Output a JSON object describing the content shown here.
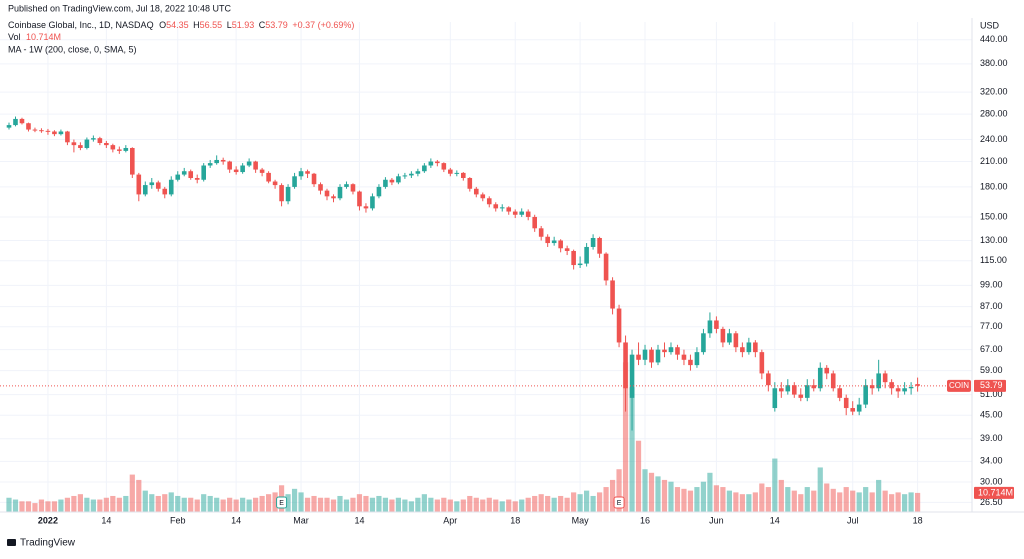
{
  "chart_data": {
    "type": "candlestick",
    "published": "Published on TradingView.com, Jul 18, 2022 10:48 UTC",
    "title": "Coinbase Global, Inc., 1D, NASDAQ",
    "ohlc_labels": [
      "O",
      "H",
      "L",
      "C"
    ],
    "change": "+0.37 (+0.69%)",
    "volume_name": "Vol",
    "volume_label": "10.714M",
    "indicator": "MA - 1W (200, close, 0, SMA, 5)",
    "currency": "USD",
    "symbol": "COIN",
    "brand": "TradingView",
    "up_color": "#26a69a",
    "down_color": "#ef5350",
    "log_scale": true,
    "grid": true,
    "ylim": [
      25,
      490
    ],
    "volume_lim": [
      0,
      275
    ],
    "yticks": [
      {
        "value": 26.5,
        "label": "26.50"
      },
      {
        "value": 30,
        "label": "30.00"
      },
      {
        "value": 34,
        "label": "34.00"
      },
      {
        "value": 39,
        "label": "39.00"
      },
      {
        "value": 45,
        "label": "45.00"
      },
      {
        "value": 51,
        "label": "51.00"
      },
      {
        "value": 59,
        "label": "59.00"
      },
      {
        "value": 67,
        "label": "67.00"
      },
      {
        "value": 77,
        "label": "77.00"
      },
      {
        "value": 87,
        "label": "87.00"
      },
      {
        "value": 99,
        "label": "99.00"
      },
      {
        "value": 115,
        "label": "115.00"
      },
      {
        "value": 130,
        "label": "130.00"
      },
      {
        "value": 150,
        "label": "150.00"
      },
      {
        "value": 180,
        "label": "180.00"
      },
      {
        "value": 210,
        "label": "210.00"
      },
      {
        "value": 240,
        "label": "240.00"
      },
      {
        "value": 280,
        "label": "280.00"
      },
      {
        "value": 320,
        "label": "320.00"
      },
      {
        "value": 380,
        "label": "380.00"
      },
      {
        "value": 440,
        "label": "440.00"
      }
    ],
    "xticks": [
      {
        "value": 6,
        "label": "2022"
      },
      {
        "value": 15,
        "label": "14"
      },
      {
        "value": 26,
        "label": "Feb"
      },
      {
        "value": 35,
        "label": "14"
      },
      {
        "value": 45,
        "label": "Mar"
      },
      {
        "value": 54,
        "label": "14"
      },
      {
        "value": 68,
        "label": "Apr"
      },
      {
        "value": 78,
        "label": "18"
      },
      {
        "value": 88,
        "label": "May"
      },
      {
        "value": 98,
        "label": "16"
      },
      {
        "value": 109,
        "label": "Jun"
      },
      {
        "value": 118,
        "label": "14"
      },
      {
        "value": 130,
        "label": "Jul"
      },
      {
        "value": 140,
        "label": "18"
      }
    ],
    "events": [
      {
        "index": 42,
        "label": "E"
      },
      {
        "index": 94,
        "label": "E"
      }
    ],
    "open": [
      258,
      262,
      272,
      265,
      255,
      254,
      253,
      252,
      248,
      252,
      236,
      232,
      228,
      240,
      242,
      235,
      232,
      226,
      224,
      228,
      194,
      172,
      182,
      185,
      178,
      172,
      188,
      194,
      198,
      190,
      188,
      205,
      208,
      212,
      210,
      200,
      197,
      205,
      210,
      200,
      196,
      186,
      182,
      165,
      180,
      192,
      198,
      195,
      183,
      176,
      170,
      168,
      180,
      183,
      175,
      160,
      158,
      170,
      180,
      188,
      185,
      192,
      193,
      195,
      198,
      205,
      210,
      208,
      200,
      195,
      196,
      190,
      178,
      172,
      168,
      162,
      158,
      159,
      155,
      152,
      155,
      150,
      140,
      133,
      128,
      130,
      124,
      122,
      112,
      113,
      125,
      132,
      120,
      102,
      86,
      70,
      50,
      65,
      63,
      67,
      62,
      67,
      66,
      68,
      65,
      63,
      61,
      66,
      74,
      80,
      76,
      70,
      74,
      68,
      66,
      70,
      66,
      58,
      47,
      53,
      52,
      54,
      51,
      50,
      54,
      53,
      60,
      58,
      53,
      50,
      47,
      46,
      48,
      54,
      53,
      58,
      55,
      53,
      52,
      53,
      54.35
    ],
    "high": [
      266,
      276,
      274,
      266,
      258,
      257,
      256,
      254,
      255,
      253,
      240,
      236,
      243,
      246,
      244,
      238,
      234,
      230,
      232,
      229,
      196,
      186,
      190,
      187,
      180,
      192,
      198,
      202,
      200,
      194,
      208,
      212,
      218,
      215,
      211,
      204,
      208,
      214,
      211,
      202,
      198,
      188,
      184,
      183,
      196,
      202,
      200,
      196,
      185,
      178,
      172,
      183,
      186,
      184,
      176,
      163,
      173,
      183,
      191,
      190,
      195,
      196,
      198,
      201,
      208,
      214,
      212,
      209,
      202,
      199,
      197,
      191,
      180,
      174,
      170,
      164,
      162,
      160,
      157,
      158,
      157,
      152,
      142,
      135,
      133,
      131,
      126,
      123,
      118,
      128,
      135,
      133,
      121,
      104,
      88,
      73,
      67,
      70,
      69,
      68,
      69,
      70,
      70,
      69,
      67,
      65,
      68,
      76,
      84,
      82,
      77,
      76,
      75,
      70,
      72,
      71,
      67,
      59,
      55,
      55,
      56,
      55,
      53,
      56,
      56,
      62,
      61,
      59,
      54,
      51,
      49,
      50,
      56,
      56,
      63,
      59,
      56,
      54,
      55,
      55,
      56.55
    ],
    "low": [
      255,
      260,
      263,
      252,
      251,
      250,
      247,
      245,
      246,
      232,
      222,
      225,
      226,
      237,
      232,
      228,
      222,
      220,
      222,
      190,
      165,
      170,
      178,
      175,
      168,
      170,
      186,
      192,
      188,
      184,
      186,
      202,
      206,
      206,
      196,
      194,
      195,
      203,
      196,
      192,
      184,
      178,
      160,
      162,
      178,
      188,
      190,
      180,
      172,
      166,
      164,
      166,
      178,
      172,
      156,
      154,
      156,
      168,
      178,
      182,
      183,
      189,
      190,
      192,
      196,
      202,
      204,
      197,
      192,
      192,
      187,
      175,
      169,
      165,
      159,
      155,
      155,
      152,
      149,
      150,
      147,
      137,
      130,
      125,
      126,
      121,
      119,
      109,
      110,
      111,
      123,
      117,
      99,
      83,
      68,
      46,
      41,
      61,
      61,
      60,
      61,
      64,
      65,
      63,
      61,
      59,
      60,
      65,
      72,
      74,
      68,
      69,
      66,
      64,
      65,
      64,
      56,
      52,
      46,
      50,
      51,
      50,
      49,
      49,
      52,
      52,
      56,
      52,
      49,
      45,
      45,
      45,
      47,
      51,
      52,
      53,
      51,
      50,
      51,
      51,
      51.93
    ],
    "close": [
      262,
      272,
      265,
      255,
      254,
      253,
      252,
      248,
      252,
      236,
      232,
      228,
      240,
      242,
      235,
      232,
      226,
      224,
      228,
      194,
      172,
      182,
      185,
      178,
      172,
      188,
      194,
      198,
      190,
      188,
      205,
      208,
      212,
      210,
      200,
      197,
      205,
      210,
      200,
      196,
      186,
      182,
      165,
      180,
      192,
      198,
      195,
      183,
      176,
      170,
      168,
      180,
      183,
      175,
      160,
      158,
      170,
      180,
      188,
      185,
      192,
      193,
      195,
      198,
      205,
      210,
      208,
      200,
      195,
      196,
      190,
      178,
      172,
      168,
      162,
      158,
      159,
      155,
      152,
      155,
      150,
      140,
      133,
      128,
      130,
      124,
      122,
      112,
      113,
      125,
      132,
      120,
      102,
      86,
      70,
      53,
      65,
      63,
      67,
      62,
      67,
      66,
      68,
      65,
      63,
      61,
      66,
      74,
      80,
      76,
      70,
      74,
      68,
      66,
      70,
      66,
      58,
      54,
      53,
      52,
      54,
      51,
      50,
      54,
      53,
      60,
      58,
      53,
      50,
      47,
      46,
      48,
      54,
      53,
      58,
      55,
      53,
      52,
      53,
      53.42,
      53.79
    ],
    "volume": [
      8,
      7,
      6,
      6,
      5,
      7,
      6,
      6,
      7,
      8,
      9,
      10,
      8,
      7,
      7,
      8,
      9,
      8,
      9,
      21,
      18,
      12,
      10,
      9,
      10,
      11,
      9,
      8,
      8,
      7,
      10,
      9,
      8,
      7,
      8,
      7,
      8,
      7,
      8,
      9,
      10,
      11,
      15,
      10,
      13,
      11,
      8,
      9,
      8,
      8,
      7,
      9,
      7,
      8,
      10,
      9,
      8,
      9,
      8,
      7,
      8,
      7,
      6,
      8,
      10,
      8,
      7,
      8,
      7,
      6,
      7,
      9,
      8,
      7,
      8,
      7,
      6,
      7,
      6,
      7,
      8,
      9,
      10,
      9,
      8,
      9,
      8,
      11,
      10,
      12,
      9,
      11,
      14,
      18,
      24,
      84,
      70,
      40,
      24,
      22,
      20,
      18,
      17,
      14,
      13,
      12,
      14,
      17,
      22,
      15,
      14,
      12,
      11,
      10,
      10,
      11,
      16,
      14,
      30,
      18,
      14,
      12,
      10,
      14,
      12,
      25,
      16,
      13,
      11,
      14,
      12,
      11,
      14,
      11,
      18,
      12,
      10,
      11,
      10,
      11,
      10.714
    ]
  }
}
